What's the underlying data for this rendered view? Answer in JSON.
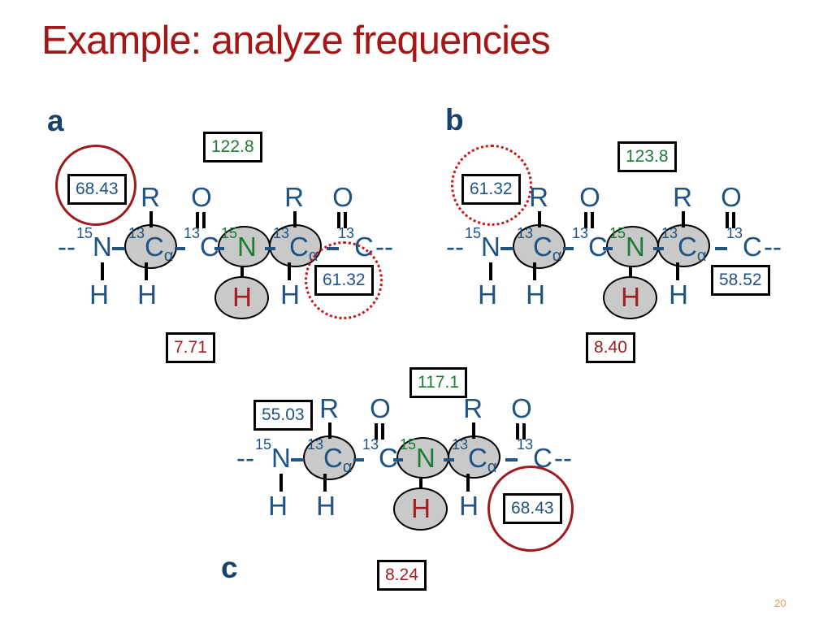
{
  "slide": {
    "title": "Example: analyze frequencies",
    "page_number": "20"
  },
  "molecule": {
    "chain_start": "--",
    "chain_end": "--",
    "isotope_15": "15",
    "isotope_13": "13",
    "nitrogen": "N",
    "carbon": "C",
    "alpha": "α",
    "r_group": "R",
    "oxygen": "O",
    "hydrogen": "H",
    "backbone_sequence": "--15N–13Cα–13C–15N–13Cα–13C--"
  },
  "panels": [
    {
      "label": "a",
      "boxes": {
        "upper_left": {
          "value": "68.43",
          "color": "blue",
          "highlight": "solid-circle"
        },
        "top": {
          "value": "122.8",
          "color": "green",
          "highlight": "none"
        },
        "right": {
          "value": "61.32",
          "color": "blue",
          "highlight": "dotted-circle"
        },
        "bottom": {
          "value": "7.71",
          "color": "red",
          "highlight": "none"
        }
      }
    },
    {
      "label": "b",
      "boxes": {
        "upper_left": {
          "value": "61.32",
          "color": "blue",
          "highlight": "dotted-circle"
        },
        "top": {
          "value": "123.8",
          "color": "green",
          "highlight": "none"
        },
        "right": {
          "value": "58.52",
          "color": "blue",
          "highlight": "none"
        },
        "bottom": {
          "value": "8.40",
          "color": "red",
          "highlight": "none"
        }
      }
    },
    {
      "label": "c",
      "boxes": {
        "upper_left": {
          "value": "55.03",
          "color": "blue",
          "highlight": "none"
        },
        "top": {
          "value": "117.1",
          "color": "green",
          "highlight": "none"
        },
        "right": {
          "value": "68.43",
          "color": "blue",
          "highlight": "solid-circle"
        },
        "bottom": {
          "value": "8.24",
          "color": "red",
          "highlight": "none"
        }
      }
    }
  ],
  "colors": {
    "title_red": "#A31717",
    "backbone_blue": "#1F5383",
    "label_blue": "#17436B",
    "nitrogen_green": "#1E7B34",
    "proton_red": "#A01D22",
    "circle_solid_red": "#9E1B1E",
    "circle_dotted_red": "#C01A1E",
    "ellipse_fill": "#C9C9C9",
    "box_border": "#000000",
    "page_number_orange": "#D9A04B"
  }
}
